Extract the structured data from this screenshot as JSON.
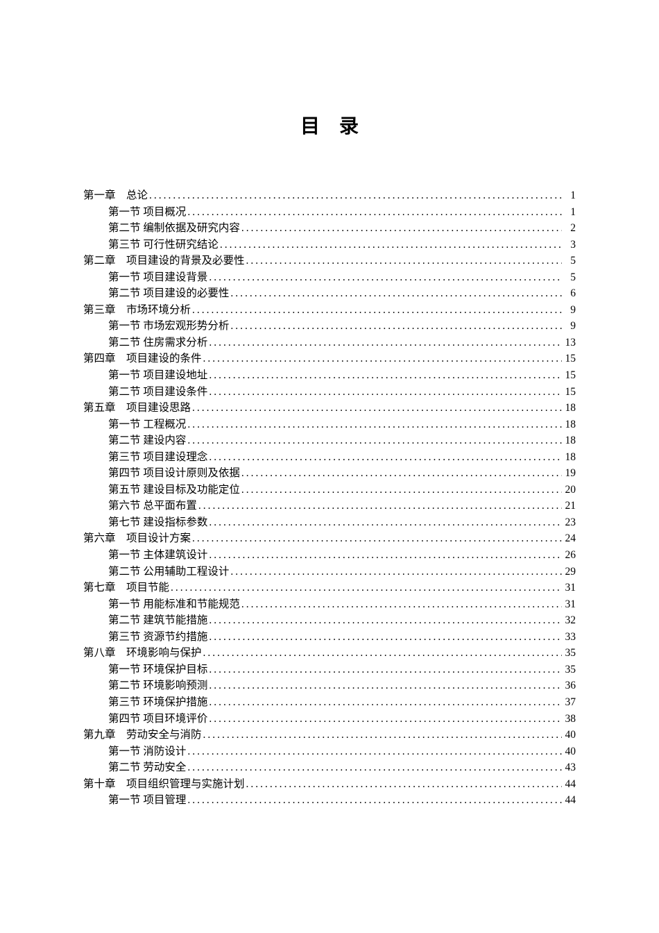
{
  "title": "目录",
  "colors": {
    "text": "#000000",
    "background": "#ffffff"
  },
  "typography": {
    "title_fontsize": 28,
    "body_fontsize": 15.5,
    "font_family": "SimSun"
  },
  "entries": [
    {
      "level": 0,
      "label": "第一章　总论",
      "page": "1"
    },
    {
      "level": 1,
      "label": "第一节 项目概况",
      "page": "1"
    },
    {
      "level": 1,
      "label": "第二节 编制依据及研究内容",
      "page": "2"
    },
    {
      "level": 1,
      "label": "第三节 可行性研究结论",
      "page": "3"
    },
    {
      "level": 0,
      "label": "第二章　项目建设的背景及必要性",
      "page": "5"
    },
    {
      "level": 1,
      "label": "第一节 项目建设背景",
      "page": "5"
    },
    {
      "level": 1,
      "label": "第二节 项目建设的必要性",
      "page": "6"
    },
    {
      "level": 0,
      "label": "第三章　市场环境分析",
      "page": "9"
    },
    {
      "level": 1,
      "label": "第一节 市场宏观形势分析",
      "page": "9"
    },
    {
      "level": 1,
      "label": "第二节 住房需求分析",
      "page": "13"
    },
    {
      "level": 0,
      "label": "第四章　项目建设的条件",
      "page": "15"
    },
    {
      "level": 1,
      "label": "第一节 项目建设地址",
      "page": "15"
    },
    {
      "level": 1,
      "label": "第二节 项目建设条件",
      "page": "15"
    },
    {
      "level": 0,
      "label": "第五章　项目建设思路",
      "page": "18"
    },
    {
      "level": 1,
      "label": "第一节 工程概况",
      "page": "18"
    },
    {
      "level": 1,
      "label": "第二节 建设内容",
      "page": "18"
    },
    {
      "level": 1,
      "label": "第三节 项目建设理念",
      "page": "18"
    },
    {
      "level": 1,
      "label": "第四节 项目设计原则及依据",
      "page": "19"
    },
    {
      "level": 1,
      "label": "第五节 建设目标及功能定位",
      "page": "20"
    },
    {
      "level": 1,
      "label": "第六节 总平面布置",
      "page": "21"
    },
    {
      "level": 1,
      "label": "第七节 建设指标参数",
      "page": "23"
    },
    {
      "level": 0,
      "label": "第六章　项目设计方案",
      "page": "24"
    },
    {
      "level": 1,
      "label": "第一节 主体建筑设计",
      "page": "26"
    },
    {
      "level": 1,
      "label": "第二节 公用辅助工程设计",
      "page": "29"
    },
    {
      "level": 0,
      "label": "第七章　项目节能",
      "page": "31"
    },
    {
      "level": 1,
      "label": "第一节 用能标准和节能规范",
      "page": "31"
    },
    {
      "level": 1,
      "label": "第二节 建筑节能措施",
      "page": "32"
    },
    {
      "level": 1,
      "label": "第三节 资源节约措施",
      "page": "33"
    },
    {
      "level": 0,
      "label": "第八章　环境影响与保护",
      "page": "35"
    },
    {
      "level": 1,
      "label": "第一节 环境保护目标",
      "page": "35"
    },
    {
      "level": 1,
      "label": "第二节 环境影响预测",
      "page": "36"
    },
    {
      "level": 1,
      "label": "第三节 环境保护措施",
      "page": "37"
    },
    {
      "level": 1,
      "label": "第四节 项目环境评价",
      "page": "38"
    },
    {
      "level": 0,
      "label": "第九章　劳动安全与消防",
      "page": "40"
    },
    {
      "level": 1,
      "label": "第一节 消防设计",
      "page": "40"
    },
    {
      "level": 1,
      "label": "第二节 劳动安全",
      "page": "43"
    },
    {
      "level": 0,
      "label": "第十章　项目组织管理与实施计划",
      "page": "44"
    },
    {
      "level": 1,
      "label": "第一节 项目管理",
      "page": "44"
    }
  ]
}
